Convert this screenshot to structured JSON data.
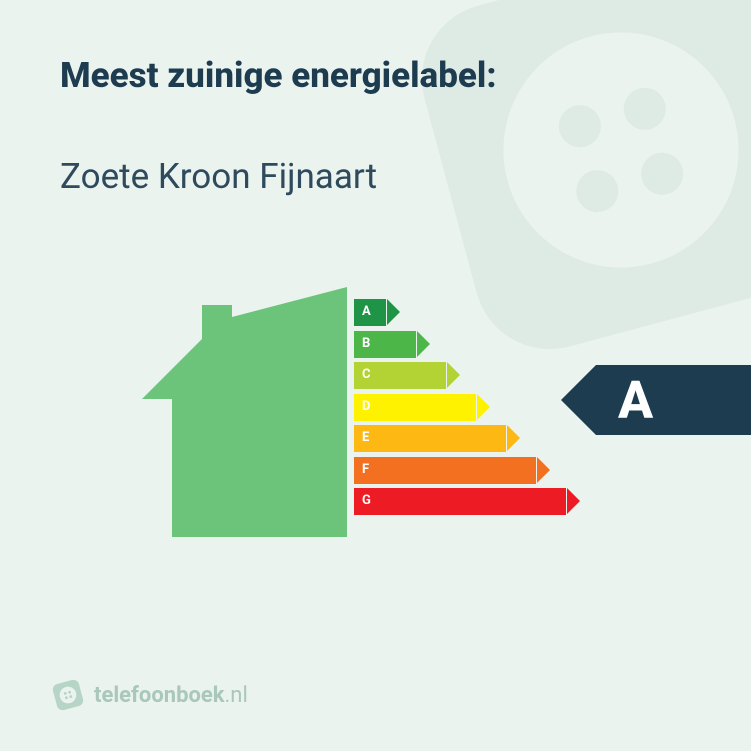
{
  "background_color": "#eaf3ee",
  "title": {
    "text": "Meest zuinige energielabel:",
    "color": "#1d3c50"
  },
  "subtitle": {
    "text": "Zoete Kroon Fijnaart",
    "color": "#2e4a5c"
  },
  "house_color": "#6bc47a",
  "chart": {
    "type": "energy-label-bars",
    "bar_base_width": 32,
    "bar_width_step": 30,
    "bars": [
      {
        "label": "A",
        "color": "#1f9447"
      },
      {
        "label": "B",
        "color": "#4cb748"
      },
      {
        "label": "C",
        "color": "#b3d334"
      },
      {
        "label": "D",
        "color": "#fef200"
      },
      {
        "label": "E",
        "color": "#fdb813"
      },
      {
        "label": "F",
        "color": "#f37021"
      },
      {
        "label": "G",
        "color": "#ed1c24"
      }
    ]
  },
  "indicator": {
    "letter": "A",
    "background_color": "#1d3c50",
    "text_color": "#ffffff"
  },
  "footer": {
    "icon_color": "#b6d5c7",
    "bold_text": "telefoonboek",
    "light_text": ".nl",
    "text_color": "#a9c8ba"
  },
  "watermark_color": "#2e6b4f"
}
